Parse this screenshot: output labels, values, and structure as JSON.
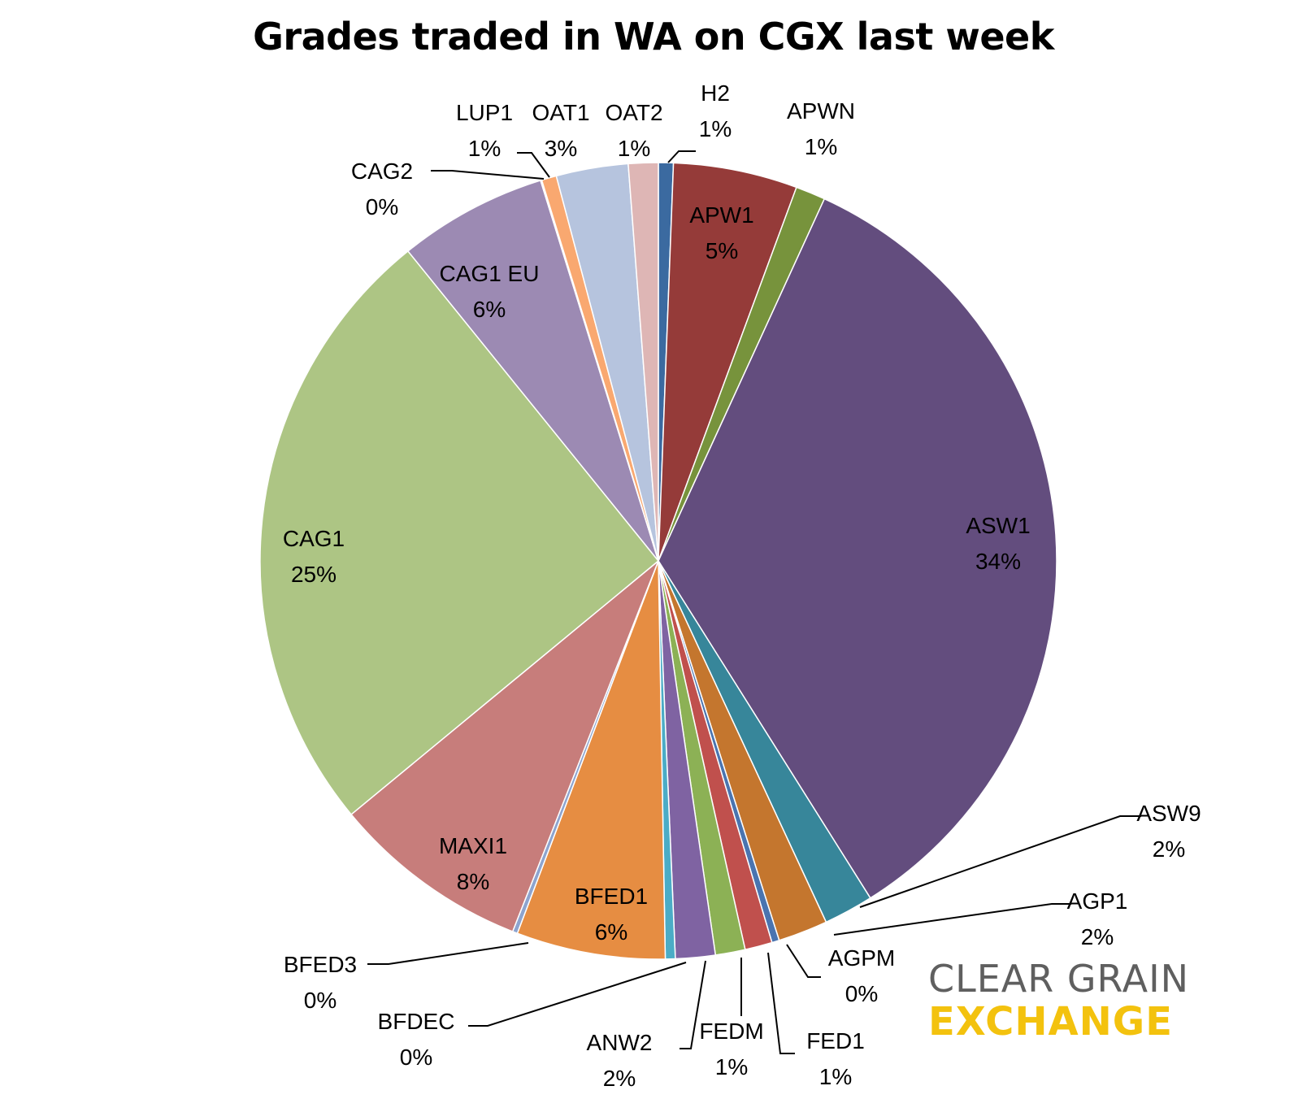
{
  "chart_data": {
    "type": "pie",
    "title": "Grades traded in WA on CGX last week",
    "slices": [
      {
        "label": "H2",
        "value": 0.6,
        "pct_label": "1%",
        "color": "#3b6aa0"
      },
      {
        "label": "APW1",
        "value": 5,
        "pct_label": "5%",
        "color": "#953b39"
      },
      {
        "label": "APWN",
        "value": 1.2,
        "pct_label": "1%",
        "color": "#77933c"
      },
      {
        "label": "ASW1",
        "value": 34,
        "pct_label": "34%",
        "color": "#634d7e"
      },
      {
        "label": "ASW9",
        "value": 2,
        "pct_label": "2%",
        "color": "#37869a"
      },
      {
        "label": "AGP1",
        "value": 2,
        "pct_label": "2%",
        "color": "#c4762e"
      },
      {
        "label": "AGPM",
        "value": 0.3,
        "pct_label": "0%",
        "color": "#4a74b0"
      },
      {
        "label": "FED1",
        "value": 1.1,
        "pct_label": "1%",
        "color": "#c0504d"
      },
      {
        "label": "FEDM",
        "value": 1.2,
        "pct_label": "1%",
        "color": "#8cb155"
      },
      {
        "label": "ANW2",
        "value": 1.6,
        "pct_label": "2%",
        "color": "#7f63a2"
      },
      {
        "label": "BFDEC",
        "value": 0.4,
        "pct_label": "0%",
        "color": "#4bacc6"
      },
      {
        "label": "BFED1",
        "value": 6,
        "pct_label": "6%",
        "color": "#e68d42"
      },
      {
        "label": "BFED3",
        "value": 0.2,
        "pct_label": "0%",
        "color": "#8da4cf"
      },
      {
        "label": "MAXI1",
        "value": 8,
        "pct_label": "8%",
        "color": "#c77d7b"
      },
      {
        "label": "CAG1",
        "value": 25,
        "pct_label": "25%",
        "color": "#adc584"
      },
      {
        "label": "CAG1 EU",
        "value": 6,
        "pct_label": "6%",
        "color": "#9c8ab3"
      },
      {
        "label": "CAG2",
        "value": 0.05,
        "pct_label": "0%",
        "color": "#8aa6cf"
      },
      {
        "label": "LUP1",
        "value": 0.6,
        "pct_label": "1%",
        "color": "#f9a870"
      },
      {
        "label": "OAT1",
        "value": 2.9,
        "pct_label": "3%",
        "color": "#b6c4de"
      },
      {
        "label": "OAT2",
        "value": 1.2,
        "pct_label": "1%",
        "color": "#deb6b5"
      }
    ]
  },
  "logo": {
    "line1": "CLEAR GRAIN",
    "line2": "EXCHANGE"
  }
}
